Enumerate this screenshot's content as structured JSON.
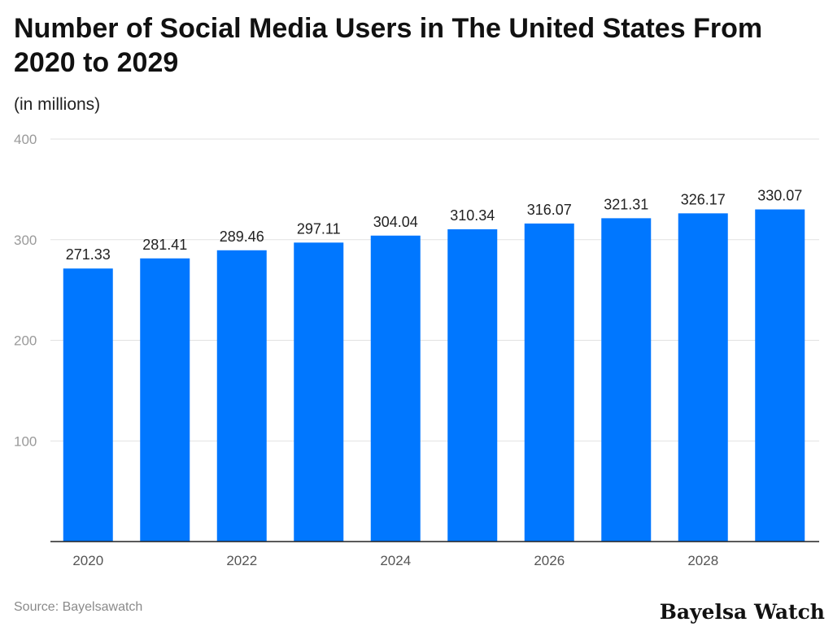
{
  "title": "Number of Social Media Users in The United States From 2020 to 2029",
  "subtitle": "(in millions)",
  "source": "Source: Bayelsawatch",
  "brand": "Bayelsa Watch",
  "colors": {
    "bar": "#0077ff",
    "grid": "#e2e2e2",
    "axis": "#222222"
  },
  "chart_data": {
    "type": "bar",
    "title": "Number of Social Media Users in The United States From 2020 to 2029",
    "subtitle": "(in millions)",
    "categories": [
      "2020",
      "2021",
      "2022",
      "2023",
      "2024",
      "2025",
      "2026",
      "2027",
      "2028",
      "2029"
    ],
    "x_tick_labels": [
      "2020",
      "",
      "2022",
      "",
      "2024",
      "",
      "2026",
      "",
      "2028",
      ""
    ],
    "values": [
      271.33,
      281.41,
      289.46,
      297.11,
      304.04,
      310.34,
      316.07,
      321.31,
      326.17,
      330.07
    ],
    "value_labels": [
      "271.33",
      "281.41",
      "289.46",
      "297.11",
      "304.04",
      "310.34",
      "316.07",
      "321.31",
      "326.17",
      "330.07"
    ],
    "ylim": [
      0,
      400
    ],
    "y_ticks": [
      100,
      200,
      300,
      400
    ],
    "grid": true,
    "legend": "none"
  }
}
